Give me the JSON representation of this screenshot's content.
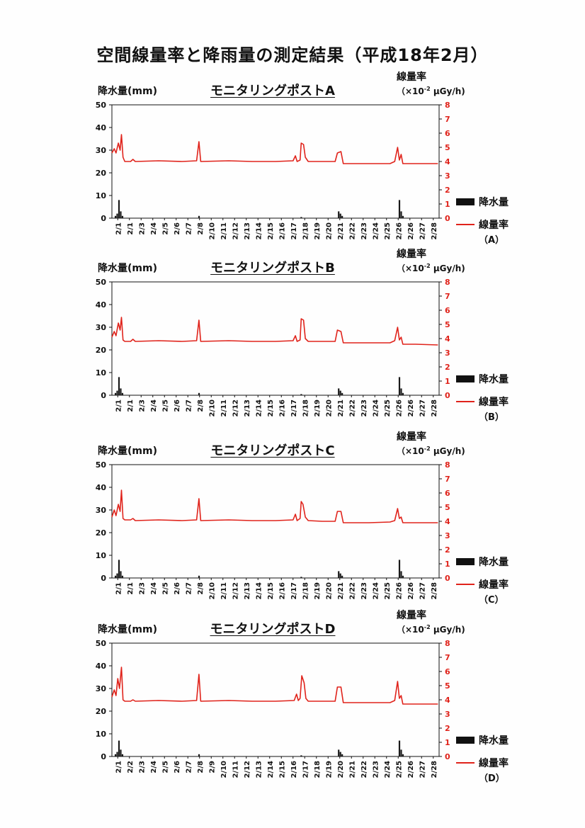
{
  "page_title": "空間線量率と降雨量の測定結果（平成18年2月）",
  "left_axis_label": "降水量(mm)",
  "right_axis_label": "線量率",
  "right_axis_unit_pre": "（×10",
  "right_axis_unit_exp": "-2",
  "right_axis_unit_post": "μGy/h)",
  "legend_rain": "降水量",
  "legend_dose": "線量率",
  "colors": {
    "dose_line": "#e0231b",
    "rain_bars": "#1a1a1a",
    "frame": "#111111",
    "right_axis_text": "#e0231b"
  },
  "chart_data": [
    {
      "type": "bar+line",
      "title": "モニタリングポストA",
      "legend_post": "（A）",
      "x_ticks": [
        "2/1",
        "2/1",
        "2/3",
        "2/4",
        "2/5",
        "2/6",
        "2/7",
        "2/8",
        "2/10",
        "2/11",
        "2/12",
        "2/13",
        "2/14",
        "2/15",
        "2/16",
        "2/17",
        "2/18",
        "2/19",
        "2/20",
        "2/21",
        "2/22",
        "2/23",
        "2/24",
        "2/25",
        "2/26",
        "2/26",
        "2/27",
        "2/28"
      ],
      "x_range_days": [
        0,
        28
      ],
      "rain_ylim": [
        0,
        50
      ],
      "rain_yticks": [
        0,
        10,
        20,
        30,
        40,
        50
      ],
      "dose_ylim": [
        0,
        8
      ],
      "dose_yticks": [
        0,
        1,
        2,
        3,
        4,
        5,
        6,
        7,
        8
      ],
      "rain": [
        [
          0.3,
          1
        ],
        [
          0.45,
          2
        ],
        [
          0.6,
          8
        ],
        [
          0.75,
          3
        ],
        [
          0.9,
          1
        ],
        [
          7.45,
          1
        ],
        [
          16.2,
          0.5
        ],
        [
          19.4,
          3
        ],
        [
          19.55,
          2
        ],
        [
          19.7,
          1
        ],
        [
          24.6,
          8
        ],
        [
          24.75,
          3
        ],
        [
          24.9,
          1
        ]
      ],
      "dose": [
        [
          0,
          4.6
        ],
        [
          0.2,
          4.9
        ],
        [
          0.35,
          4.6
        ],
        [
          0.55,
          5.3
        ],
        [
          0.7,
          4.8
        ],
        [
          0.82,
          5.9
        ],
        [
          0.95,
          4.3
        ],
        [
          1.1,
          4.0
        ],
        [
          1.6,
          4.0
        ],
        [
          1.8,
          4.15
        ],
        [
          2.0,
          4.0
        ],
        [
          4.0,
          4.05
        ],
        [
          6.0,
          4.0
        ],
        [
          7.25,
          4.05
        ],
        [
          7.45,
          5.4
        ],
        [
          7.6,
          4.0
        ],
        [
          10.0,
          4.05
        ],
        [
          12.0,
          4.0
        ],
        [
          14.0,
          4.0
        ],
        [
          15.5,
          4.05
        ],
        [
          15.7,
          4.4
        ],
        [
          15.85,
          4.0
        ],
        [
          16.1,
          4.1
        ],
        [
          16.2,
          5.3
        ],
        [
          16.4,
          5.2
        ],
        [
          16.55,
          4.3
        ],
        [
          16.8,
          4.0
        ],
        [
          18.0,
          4.0
        ],
        [
          19.1,
          4.0
        ],
        [
          19.3,
          4.6
        ],
        [
          19.6,
          4.7
        ],
        [
          19.8,
          3.85
        ],
        [
          20.5,
          3.85
        ],
        [
          22.0,
          3.85
        ],
        [
          23.8,
          3.85
        ],
        [
          24.2,
          4.0
        ],
        [
          24.45,
          5.0
        ],
        [
          24.6,
          4.1
        ],
        [
          24.75,
          4.5
        ],
        [
          24.9,
          3.85
        ],
        [
          26.0,
          3.85
        ],
        [
          27.9,
          3.85
        ]
      ]
    },
    {
      "type": "bar+line",
      "title": "モニタリングポストB",
      "legend_post": "（B）",
      "x_ticks": [
        "2/1",
        "2/1",
        "2/3",
        "2/4",
        "2/5",
        "2/6",
        "2/7",
        "2/8",
        "2/10",
        "2/11",
        "2/12",
        "2/13",
        "2/14",
        "2/15",
        "2/16",
        "2/17",
        "2/18",
        "2/19",
        "2/20",
        "2/21",
        "2/22",
        "2/23",
        "2/24",
        "2/25",
        "2/26",
        "2/26",
        "2/27",
        "2/28"
      ],
      "x_range_days": [
        0,
        28
      ],
      "rain_ylim": [
        0,
        50
      ],
      "rain_yticks": [
        0,
        10,
        20,
        30,
        40,
        50
      ],
      "dose_ylim": [
        0,
        8
      ],
      "dose_yticks": [
        0,
        1,
        2,
        3,
        4,
        5,
        6,
        7,
        8
      ],
      "rain": [
        [
          0.3,
          1
        ],
        [
          0.45,
          2
        ],
        [
          0.6,
          8
        ],
        [
          0.75,
          3
        ],
        [
          0.9,
          1
        ],
        [
          7.45,
          1
        ],
        [
          16.2,
          0.5
        ],
        [
          19.4,
          3
        ],
        [
          19.55,
          2
        ],
        [
          19.7,
          1
        ],
        [
          24.6,
          8
        ],
        [
          24.75,
          3
        ],
        [
          24.9,
          1
        ]
      ],
      "dose": [
        [
          0,
          4.1
        ],
        [
          0.2,
          4.5
        ],
        [
          0.35,
          4.2
        ],
        [
          0.55,
          5.1
        ],
        [
          0.7,
          4.6
        ],
        [
          0.82,
          5.5
        ],
        [
          0.95,
          3.9
        ],
        [
          1.1,
          3.8
        ],
        [
          1.6,
          3.8
        ],
        [
          1.8,
          3.95
        ],
        [
          2.0,
          3.8
        ],
        [
          4.0,
          3.85
        ],
        [
          6.0,
          3.8
        ],
        [
          7.25,
          3.85
        ],
        [
          7.45,
          5.3
        ],
        [
          7.6,
          3.8
        ],
        [
          10.0,
          3.85
        ],
        [
          12.0,
          3.8
        ],
        [
          14.0,
          3.8
        ],
        [
          15.5,
          3.85
        ],
        [
          15.7,
          4.2
        ],
        [
          15.85,
          3.8
        ],
        [
          16.1,
          3.9
        ],
        [
          16.2,
          5.4
        ],
        [
          16.4,
          5.3
        ],
        [
          16.55,
          4.0
        ],
        [
          16.8,
          3.8
        ],
        [
          18.0,
          3.8
        ],
        [
          19.1,
          3.8
        ],
        [
          19.3,
          4.6
        ],
        [
          19.6,
          4.5
        ],
        [
          19.8,
          3.7
        ],
        [
          20.5,
          3.7
        ],
        [
          22.0,
          3.7
        ],
        [
          23.8,
          3.7
        ],
        [
          24.2,
          3.85
        ],
        [
          24.45,
          4.8
        ],
        [
          24.6,
          3.9
        ],
        [
          24.75,
          4.1
        ],
        [
          24.9,
          3.6
        ],
        [
          26.0,
          3.6
        ],
        [
          27.9,
          3.55
        ]
      ]
    },
    {
      "type": "bar+line",
      "title": "モニタリングポストC",
      "legend_post": "（C）",
      "x_ticks": [
        "2/1",
        "2/1",
        "2/3",
        "2/4",
        "2/5",
        "2/6",
        "2/7",
        "2/8",
        "2/10",
        "2/11",
        "2/12",
        "2/13",
        "2/14",
        "2/15",
        "2/16",
        "2/17",
        "2/18",
        "2/19",
        "2/20",
        "2/21",
        "2/22",
        "2/23",
        "2/24",
        "2/25",
        "2/26",
        "2/26",
        "2/27",
        "2/28"
      ],
      "x_range_days": [
        0,
        28
      ],
      "rain_ylim": [
        0,
        50
      ],
      "rain_yticks": [
        0,
        10,
        20,
        30,
        40,
        50
      ],
      "dose_ylim": [
        0,
        8
      ],
      "dose_yticks": [
        0,
        1,
        2,
        3,
        4,
        5,
        6,
        7,
        8
      ],
      "rain": [
        [
          0.3,
          1
        ],
        [
          0.45,
          2
        ],
        [
          0.6,
          8
        ],
        [
          0.75,
          3
        ],
        [
          0.9,
          1
        ],
        [
          7.45,
          1
        ],
        [
          16.2,
          0.5
        ],
        [
          19.4,
          3
        ],
        [
          19.55,
          2
        ],
        [
          19.7,
          1
        ],
        [
          24.6,
          8
        ],
        [
          24.75,
          3
        ],
        [
          24.9,
          1
        ]
      ],
      "dose": [
        [
          0,
          4.3
        ],
        [
          0.2,
          4.8
        ],
        [
          0.35,
          4.4
        ],
        [
          0.55,
          5.2
        ],
        [
          0.7,
          4.7
        ],
        [
          0.82,
          6.2
        ],
        [
          0.95,
          4.2
        ],
        [
          1.1,
          4.1
        ],
        [
          1.6,
          4.1
        ],
        [
          1.8,
          4.2
        ],
        [
          2.0,
          4.05
        ],
        [
          4.0,
          4.1
        ],
        [
          6.0,
          4.05
        ],
        [
          7.25,
          4.1
        ],
        [
          7.45,
          5.6
        ],
        [
          7.6,
          4.05
        ],
        [
          10.0,
          4.1
        ],
        [
          12.0,
          4.05
        ],
        [
          14.0,
          4.05
        ],
        [
          15.5,
          4.1
        ],
        [
          15.7,
          4.5
        ],
        [
          15.85,
          4.05
        ],
        [
          16.1,
          4.2
        ],
        [
          16.2,
          5.4
        ],
        [
          16.35,
          5.2
        ],
        [
          16.55,
          4.3
        ],
        [
          16.8,
          4.05
        ],
        [
          18.0,
          4.0
        ],
        [
          19.1,
          4.0
        ],
        [
          19.3,
          4.7
        ],
        [
          19.6,
          4.7
        ],
        [
          19.8,
          3.9
        ],
        [
          20.5,
          3.9
        ],
        [
          22.0,
          3.9
        ],
        [
          23.8,
          3.95
        ],
        [
          24.2,
          4.05
        ],
        [
          24.45,
          4.9
        ],
        [
          24.6,
          4.2
        ],
        [
          24.75,
          4.3
        ],
        [
          24.9,
          3.9
        ],
        [
          26.0,
          3.9
        ],
        [
          27.9,
          3.9
        ]
      ]
    },
    {
      "type": "bar+line",
      "title": "モニタリングポストD",
      "legend_post": "（D）",
      "x_ticks": [
        "2/1",
        "2/2",
        "2/3",
        "2/4",
        "2/5",
        "2/6",
        "2/7",
        "2/8",
        "2/9",
        "2/10",
        "2/11",
        "2/12",
        "2/13",
        "2/14",
        "2/15",
        "2/16",
        "2/17",
        "2/18",
        "2/19",
        "2/20",
        "2/21",
        "2/22",
        "2/23",
        "2/24",
        "2/25",
        "2/26",
        "2/27",
        "2/28"
      ],
      "x_range_days": [
        0,
        28
      ],
      "rain_ylim": [
        0,
        50
      ],
      "rain_yticks": [
        0,
        10,
        20,
        30,
        40,
        50
      ],
      "dose_ylim": [
        0,
        8
      ],
      "dose_yticks": [
        0,
        1,
        2,
        3,
        4,
        5,
        6,
        7,
        8
      ],
      "rain": [
        [
          0.3,
          1
        ],
        [
          0.45,
          2
        ],
        [
          0.6,
          7
        ],
        [
          0.75,
          3
        ],
        [
          0.9,
          1
        ],
        [
          7.45,
          1
        ],
        [
          16.2,
          0.5
        ],
        [
          19.4,
          3
        ],
        [
          19.55,
          2
        ],
        [
          19.7,
          1
        ],
        [
          24.6,
          7
        ],
        [
          24.75,
          3
        ],
        [
          24.9,
          1
        ]
      ],
      "dose": [
        [
          0,
          4.2
        ],
        [
          0.2,
          4.7
        ],
        [
          0.35,
          4.3
        ],
        [
          0.5,
          5.5
        ],
        [
          0.65,
          4.8
        ],
        [
          0.82,
          6.3
        ],
        [
          0.95,
          4.0
        ],
        [
          1.1,
          3.9
        ],
        [
          1.6,
          3.9
        ],
        [
          1.8,
          4.0
        ],
        [
          2.0,
          3.9
        ],
        [
          4.0,
          3.95
        ],
        [
          6.0,
          3.9
        ],
        [
          7.25,
          3.95
        ],
        [
          7.45,
          5.8
        ],
        [
          7.6,
          3.9
        ],
        [
          10.0,
          3.95
        ],
        [
          12.0,
          3.9
        ],
        [
          14.0,
          3.9
        ],
        [
          15.6,
          3.95
        ],
        [
          15.8,
          4.4
        ],
        [
          15.95,
          3.95
        ],
        [
          16.1,
          4.1
        ],
        [
          16.25,
          5.7
        ],
        [
          16.45,
          5.2
        ],
        [
          16.6,
          4.1
        ],
        [
          16.8,
          3.9
        ],
        [
          18.0,
          3.9
        ],
        [
          19.1,
          3.9
        ],
        [
          19.3,
          4.9
        ],
        [
          19.6,
          4.9
        ],
        [
          19.8,
          3.8
        ],
        [
          20.5,
          3.8
        ],
        [
          22.0,
          3.8
        ],
        [
          23.8,
          3.8
        ],
        [
          24.2,
          3.95
        ],
        [
          24.45,
          5.3
        ],
        [
          24.6,
          4.1
        ],
        [
          24.75,
          4.3
        ],
        [
          24.9,
          3.7
        ],
        [
          26.0,
          3.7
        ],
        [
          27.9,
          3.7
        ]
      ]
    }
  ]
}
